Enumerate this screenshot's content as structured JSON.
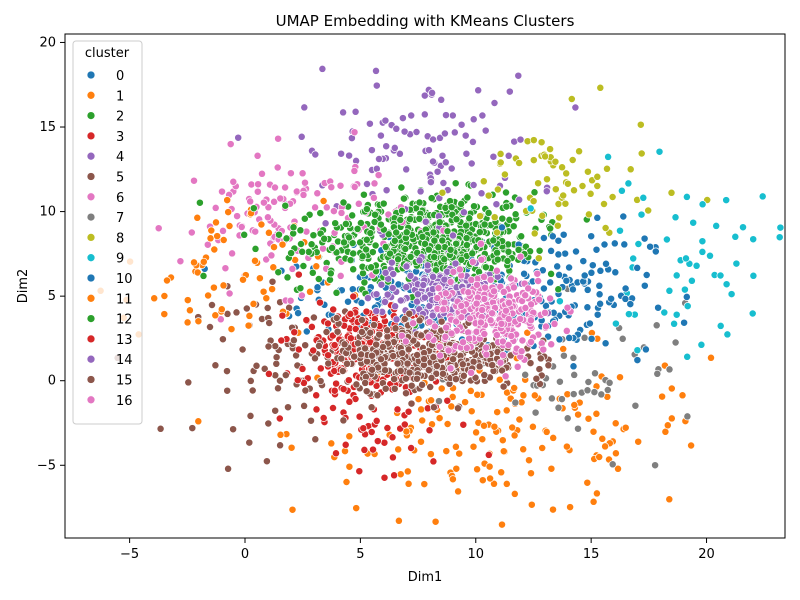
{
  "chart_data": {
    "type": "scatter",
    "title": "UMAP Embedding with KMeans Clusters",
    "xlabel": "Dim1",
    "ylabel": "Dim2",
    "xlim": [
      -7.8,
      23.4
    ],
    "ylim": [
      -9.3,
      20.5
    ],
    "xticks": [
      -5,
      0,
      5,
      10,
      15,
      20
    ],
    "yticks": [
      -5,
      0,
      5,
      10,
      15,
      20
    ],
    "grid": false,
    "legend": {
      "title": "cluster",
      "placement": "upper-left"
    },
    "series": [
      {
        "name": "0",
        "color": "#1f77b4",
        "center": [
          8.0,
          5.0
        ],
        "spread": [
          2.8,
          1.4
        ],
        "count": 220
      },
      {
        "name": "1",
        "color": "#ff7f0e",
        "center": [
          11.0,
          -3.0
        ],
        "spread": [
          4.5,
          2.5
        ],
        "count": 180
      },
      {
        "name": "2",
        "color": "#2ca02c",
        "center": [
          8.5,
          8.5
        ],
        "spread": [
          2.0,
          1.3
        ],
        "count": 450
      },
      {
        "name": "3",
        "color": "#d62728",
        "center": [
          6.0,
          -2.5
        ],
        "spread": [
          2.0,
          2.0
        ],
        "count": 60
      },
      {
        "name": "4",
        "color": "#9467bd",
        "center": [
          7.5,
          13.5
        ],
        "spread": [
          2.6,
          2.2
        ],
        "count": 110
      },
      {
        "name": "5",
        "color": "#8c564b",
        "center": [
          2.0,
          1.0
        ],
        "spread": [
          2.0,
          2.2
        ],
        "count": 90
      },
      {
        "name": "6",
        "color": "#e377c2",
        "center": [
          2.0,
          9.5
        ],
        "spread": [
          2.4,
          2.0
        ],
        "count": 130
      },
      {
        "name": "7",
        "color": "#7f7f7f",
        "center": [
          15.0,
          0.0
        ],
        "spread": [
          2.5,
          2.0
        ],
        "count": 50
      },
      {
        "name": "8",
        "color": "#bcbd22",
        "center": [
          13.5,
          11.5
        ],
        "spread": [
          2.2,
          2.0
        ],
        "count": 70
      },
      {
        "name": "9",
        "color": "#17becf",
        "center": [
          19.0,
          7.0
        ],
        "spread": [
          2.2,
          2.5
        ],
        "count": 60
      },
      {
        "name": "10",
        "color": "#1f77b4",
        "center": [
          14.0,
          5.5
        ],
        "spread": [
          1.8,
          2.0
        ],
        "count": 110
      },
      {
        "name": "11",
        "color": "#ff7f0e",
        "center": [
          -1.0,
          6.0
        ],
        "spread": [
          2.2,
          2.3
        ],
        "count": 70
      },
      {
        "name": "12",
        "color": "#2ca02c",
        "center": [
          6.5,
          8.0
        ],
        "spread": [
          2.5,
          1.2
        ],
        "count": 220
      },
      {
        "name": "13",
        "color": "#d62728",
        "center": [
          5.5,
          2.0
        ],
        "spread": [
          1.6,
          1.2
        ],
        "count": 300
      },
      {
        "name": "14",
        "color": "#9467bd",
        "center": [
          8.5,
          5.0
        ],
        "spread": [
          1.4,
          1.0
        ],
        "count": 200
      },
      {
        "name": "15",
        "color": "#8c564b",
        "center": [
          8.0,
          1.5
        ],
        "spread": [
          2.0,
          1.0
        ],
        "count": 400
      },
      {
        "name": "16",
        "color": "#e377c2",
        "center": [
          10.8,
          3.8
        ],
        "spread": [
          1.4,
          1.3
        ],
        "count": 300
      }
    ]
  }
}
